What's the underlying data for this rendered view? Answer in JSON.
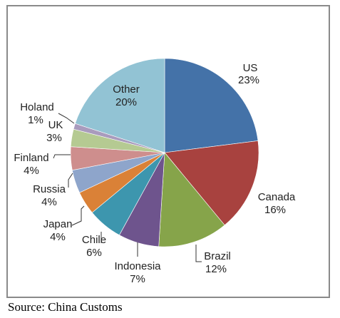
{
  "source_note": "Source: China Customs",
  "chart_data": {
    "type": "pie",
    "title": "",
    "slices": [
      {
        "label": "US",
        "value": 23,
        "value_text": "23%",
        "color": "#4472A8"
      },
      {
        "label": "Canada",
        "value": 16,
        "value_text": "16%",
        "color": "#A8423F"
      },
      {
        "label": "Brazil",
        "value": 12,
        "value_text": "12%",
        "color": "#86A44A"
      },
      {
        "label": "Indonesia",
        "value": 7,
        "value_text": "7%",
        "color": "#6E548D"
      },
      {
        "label": "Chile",
        "value": 6,
        "value_text": "6%",
        "color": "#3D96AE"
      },
      {
        "label": "Japan",
        "value": 4,
        "value_text": "4%",
        "color": "#DA8137"
      },
      {
        "label": "Russia",
        "value": 4,
        "value_text": "4%",
        "color": "#8EA5CB"
      },
      {
        "label": "Finland",
        "value": 4,
        "value_text": "4%",
        "color": "#CE8E8D"
      },
      {
        "label": "UK",
        "value": 3,
        "value_text": "3%",
        "color": "#B5CA92"
      },
      {
        "label": "Holand",
        "value": 1,
        "value_text": "1%",
        "color": "#A99BBD"
      },
      {
        "label": "Other",
        "value": 20,
        "value_text": "20%",
        "color": "#92C3D4"
      }
    ]
  }
}
